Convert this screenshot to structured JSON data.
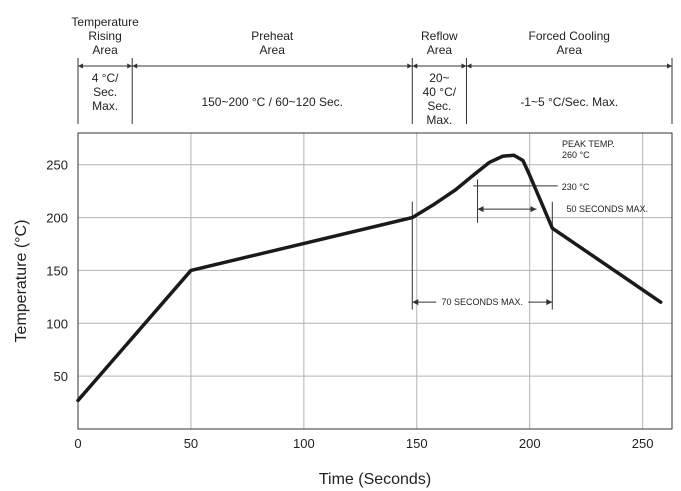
{
  "zones": [
    {
      "heading": [
        "Temperature",
        "Rising",
        "Area"
      ],
      "detail": [
        "4 °C/",
        "Sec.",
        "Max."
      ]
    },
    {
      "heading": [
        "Preheat",
        "Area"
      ],
      "detail": [
        "150~200 °C / 60~120 Sec."
      ]
    },
    {
      "heading": [
        "Reflow",
        "Area"
      ],
      "detail": [
        "20~",
        "40 °C/",
        "Sec.",
        "Max."
      ]
    },
    {
      "heading": [
        "Forced Cooling",
        "Area"
      ],
      "detail": [
        "-1~5 °C/Sec. Max."
      ]
    }
  ],
  "chart_data": {
    "type": "line",
    "xlabel": "Time (Seconds)",
    "ylabel": "Temperature (°C)",
    "xlim": [
      0,
      263
    ],
    "ylim": [
      0,
      280
    ],
    "xticks": [
      0,
      50,
      100,
      150,
      200,
      250
    ],
    "yticks": [
      50,
      100,
      150,
      200,
      250
    ],
    "grid": true,
    "zone_boundaries": [
      0,
      24,
      148,
      172,
      263
    ],
    "series": [
      {
        "x": [
          0,
          50,
          148,
          158,
          167,
          175,
          182,
          188,
          193,
          197,
          200,
          205,
          210,
          258
        ],
        "y": [
          27,
          150,
          200,
          213,
          226,
          240,
          252,
          258,
          259,
          254,
          240,
          215,
          190,
          120
        ]
      }
    ],
    "annotations": {
      "peak": {
        "lines": [
          "PEAK TEMP.",
          "260 °C"
        ]
      },
      "t230": {
        "label": "230 °C",
        "y": 230,
        "x1": 175,
        "x2": 200
      },
      "t50": {
        "label": "50 SECONDS MAX.",
        "x1": 180,
        "x2": 203,
        "y": 208
      },
      "t70": {
        "label": "70 SECONDS MAX.",
        "x1": 148,
        "x2": 210,
        "y": 120
      }
    }
  }
}
